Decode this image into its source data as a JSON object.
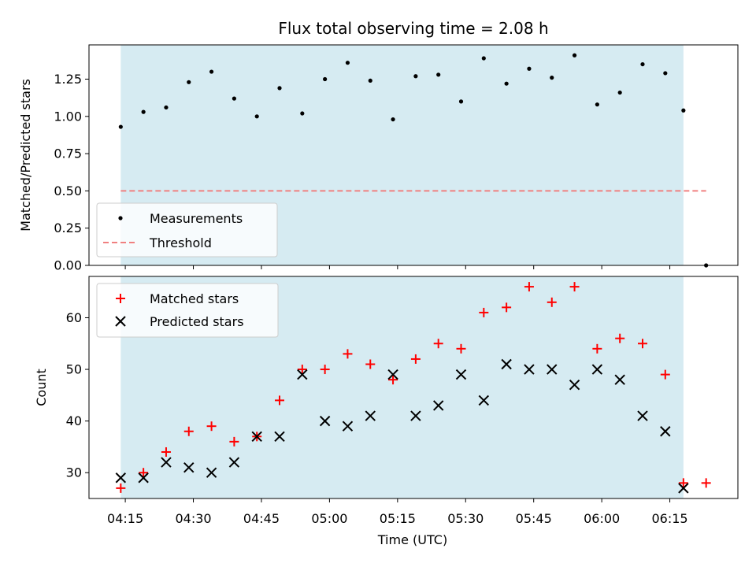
{
  "chart_data": [
    {
      "type": "scatter",
      "title": "Flux total observing time = 2.08 h",
      "xlabel": "",
      "ylabel": "Matched/Predicted stars",
      "ylim": [
        0,
        1.48
      ],
      "yticks": [
        "0.00",
        "0.25",
        "0.50",
        "0.75",
        "1.00",
        "1.25"
      ],
      "shaded_interval": [
        "04:14",
        "06:18"
      ],
      "shade_color": "#add8e6",
      "legend_position": "lower-left",
      "threshold": {
        "name": "Threshold",
        "value": 0.5,
        "x_start": "04:14",
        "x_end": "06:23",
        "color": "#f08080"
      },
      "series": [
        {
          "name": "Measurements",
          "color": "#000000",
          "marker": "dot",
          "x": [
            "04:14",
            "04:19",
            "04:24",
            "04:29",
            "04:34",
            "04:39",
            "04:44",
            "04:49",
            "04:54",
            "04:59",
            "05:04",
            "05:09",
            "05:14",
            "05:19",
            "05:24",
            "05:29",
            "05:34",
            "05:39",
            "05:44",
            "05:49",
            "05:54",
            "05:59",
            "06:04",
            "06:09",
            "06:14",
            "06:18",
            "06:23"
          ],
          "y": [
            0.93,
            1.03,
            1.06,
            1.23,
            1.3,
            1.12,
            1.0,
            1.19,
            1.02,
            1.25,
            1.36,
            1.24,
            0.98,
            1.27,
            1.28,
            1.1,
            1.39,
            1.22,
            1.32,
            1.26,
            1.41,
            1.08,
            1.16,
            1.35,
            1.29,
            1.04,
            0.0
          ]
        }
      ]
    },
    {
      "type": "scatter",
      "xlabel": "Time (UTC)",
      "ylabel": "Count",
      "ylim": [
        25,
        68
      ],
      "yticks": [
        "30",
        "40",
        "50",
        "60"
      ],
      "xticks": [
        "04:15",
        "04:30",
        "04:45",
        "05:00",
        "05:15",
        "05:30",
        "05:45",
        "06:00",
        "06:15"
      ],
      "xlim": [
        "04:07",
        "06:30"
      ],
      "shaded_interval": [
        "04:14",
        "06:18"
      ],
      "shade_color": "#add8e6",
      "legend_position": "upper-left",
      "series": [
        {
          "name": "Matched stars",
          "color": "#ff0000",
          "marker": "plus",
          "x": [
            "04:14",
            "04:19",
            "04:24",
            "04:29",
            "04:34",
            "04:39",
            "04:44",
            "04:49",
            "04:54",
            "04:59",
            "05:04",
            "05:09",
            "05:14",
            "05:19",
            "05:24",
            "05:29",
            "05:34",
            "05:39",
            "05:44",
            "05:49",
            "05:54",
            "05:59",
            "06:04",
            "06:09",
            "06:14",
            "06:18",
            "06:23"
          ],
          "y": [
            27,
            30,
            34,
            38,
            39,
            36,
            37,
            44,
            50,
            50,
            53,
            51,
            48,
            52,
            55,
            54,
            61,
            62,
            66,
            63,
            66,
            54,
            56,
            55,
            49,
            28,
            28
          ]
        },
        {
          "name": "Predicted stars",
          "color": "#000000",
          "marker": "x",
          "x": [
            "04:14",
            "04:19",
            "04:24",
            "04:29",
            "04:34",
            "04:39",
            "04:44",
            "04:49",
            "04:54",
            "04:59",
            "05:04",
            "05:09",
            "05:14",
            "05:19",
            "05:24",
            "05:29",
            "05:34",
            "05:39",
            "05:44",
            "05:49",
            "05:54",
            "05:59",
            "06:04",
            "06:09",
            "06:14",
            "06:18"
          ],
          "y": [
            29,
            29,
            32,
            31,
            30,
            32,
            37,
            37,
            49,
            40,
            39,
            41,
            49,
            41,
            43,
            49,
            44,
            51,
            50,
            50,
            47,
            50,
            48,
            41,
            38,
            27
          ]
        }
      ]
    }
  ]
}
